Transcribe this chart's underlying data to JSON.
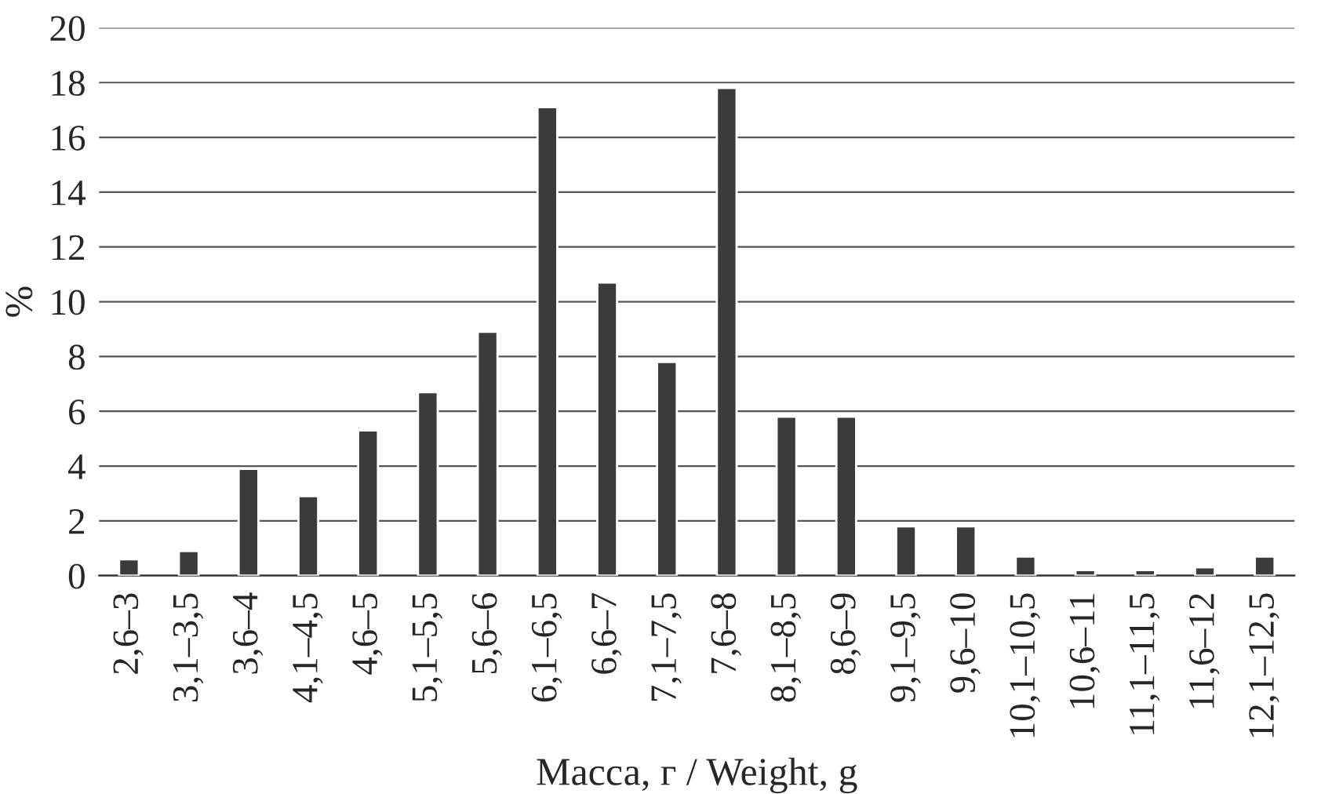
{
  "chart_data": {
    "type": "bar",
    "xlabel": "Масса, г / Weight, g",
    "ylabel": "%",
    "categories": [
      "2,6–3",
      "3,1–3,5",
      "3,6–4",
      "4,1–4,5",
      "4,6–5",
      "5,1–5,5",
      "5,6–6",
      "6,1–6,5",
      "6,6–7",
      "7,1–7,5",
      "7,6–8",
      "8,1–8,5",
      "8,6–9",
      "9,1–9,5",
      "9,6–10",
      "10,1–10,5",
      "10,6–11",
      "11,1–11,5",
      "11,6–12",
      "12,1–12,5"
    ],
    "values": [
      0.6,
      0.9,
      3.9,
      2.9,
      5.3,
      6.7,
      8.9,
      17.1,
      10.7,
      7.8,
      17.8,
      5.8,
      5.8,
      1.8,
      1.8,
      0.7,
      0.2,
      0.2,
      0.3,
      0.7
    ],
    "color": "#3a3b3d",
    "ylim": [
      0,
      20
    ],
    "yticks": [
      0,
      2,
      4,
      6,
      8,
      10,
      12,
      14,
      16,
      18,
      20
    ],
    "grid": "y"
  }
}
